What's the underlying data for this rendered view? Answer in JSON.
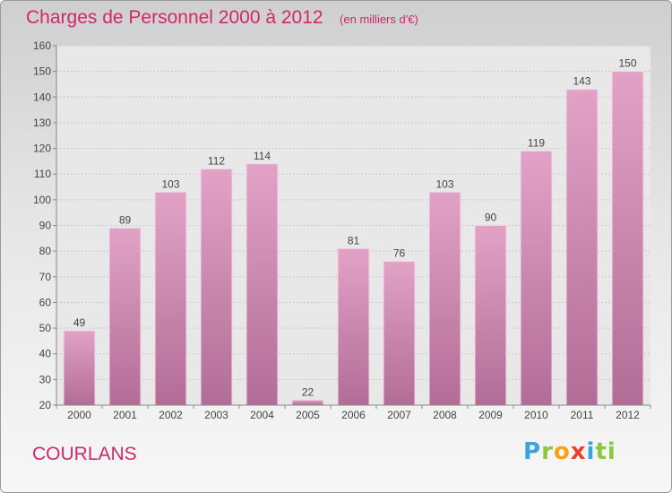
{
  "title": "Charges de Personnel 2000 à 2012",
  "subtitle": "(en milliers d'€)",
  "town": "COURLANS",
  "logo": {
    "letters": [
      "P",
      "r",
      "o",
      "x",
      "i",
      "ti"
    ]
  },
  "colors": {
    "bar": "#e2a2c6",
    "bar_dark": "#b26d96",
    "title": "#d0286b"
  },
  "chart_data": {
    "type": "bar",
    "categories": [
      "2000",
      "2001",
      "2002",
      "2003",
      "2004",
      "2005",
      "2006",
      "2007",
      "2008",
      "2009",
      "2010",
      "2011",
      "2012"
    ],
    "values": [
      49,
      89,
      103,
      112,
      114,
      22,
      81,
      76,
      103,
      90,
      119,
      143,
      150
    ],
    "ylim": [
      20,
      160
    ],
    "yticks": [
      20,
      30,
      40,
      50,
      60,
      70,
      80,
      90,
      100,
      110,
      120,
      130,
      140,
      150,
      160
    ],
    "grid": true,
    "data_labels": true
  }
}
